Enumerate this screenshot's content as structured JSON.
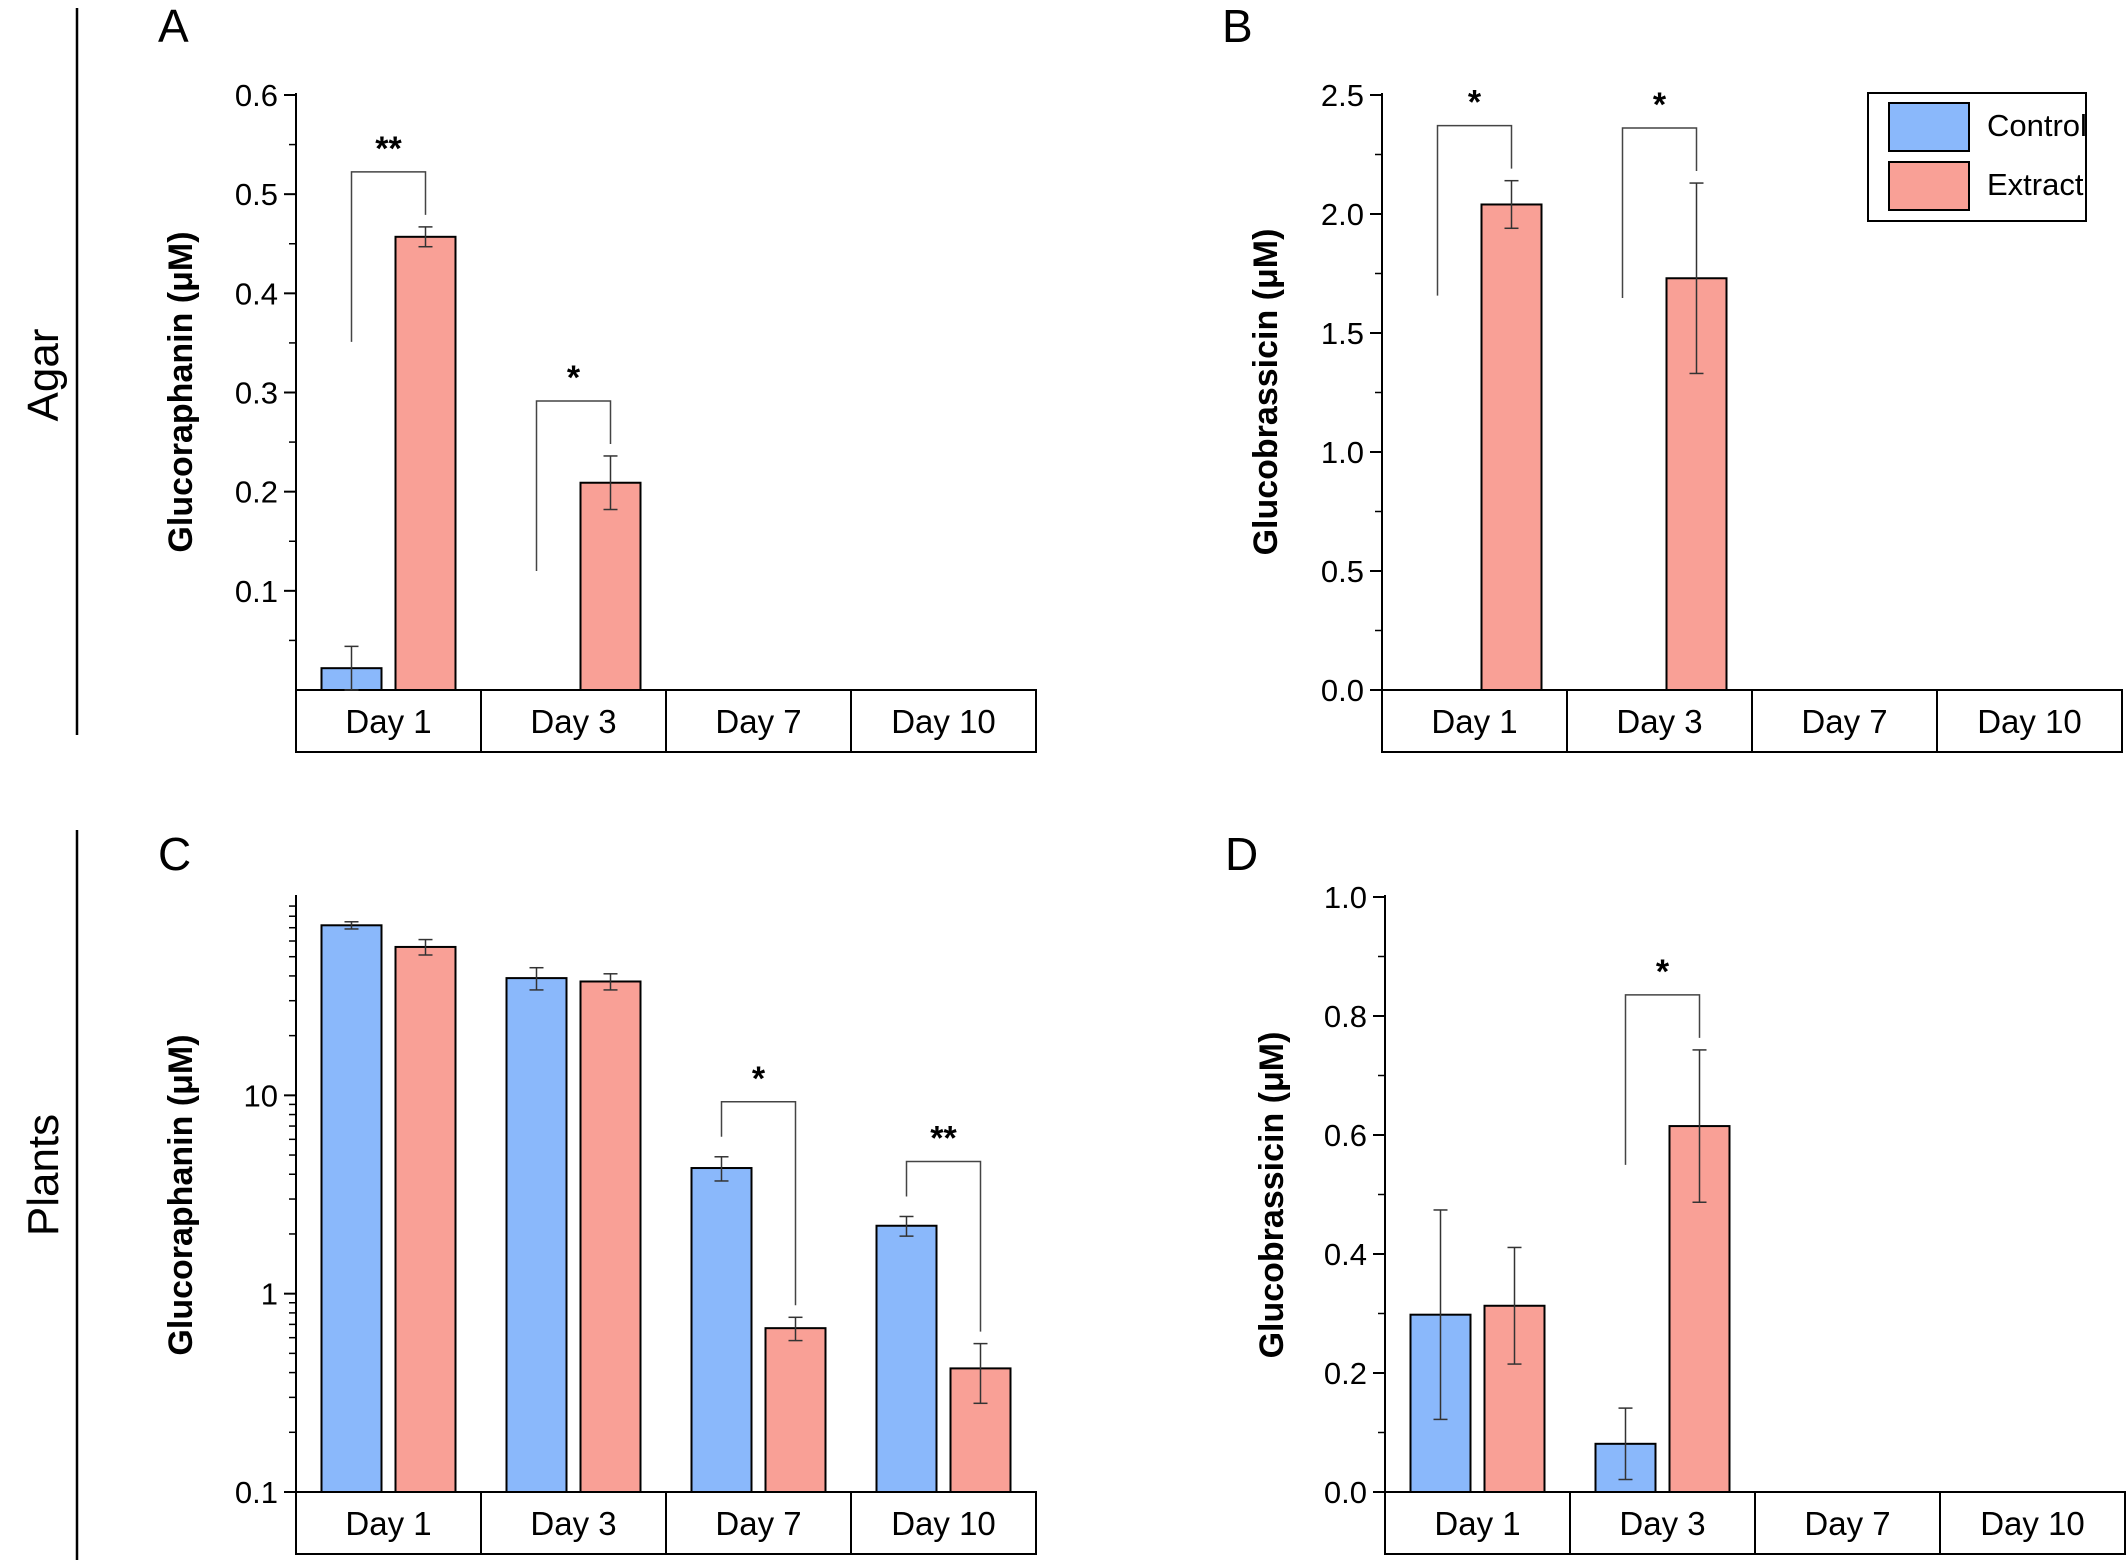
{
  "figure": {
    "row_labels": [
      "Agar",
      "Plants"
    ],
    "colors": {
      "control": "#8ab8fb",
      "extract": "#f9a096",
      "stroke": "#000000"
    },
    "legend": {
      "placement": "top-right of panel B",
      "entries": [
        "Control",
        "Extract"
      ]
    }
  },
  "chart_data": [
    {
      "panel": "A",
      "type": "bar",
      "ylabel": "Glucoraphanin (μM)",
      "yscale": "linear",
      "ylim": [
        0,
        0.6
      ],
      "yticks": [
        "0.1",
        "0.2",
        "0.3",
        "0.4",
        "0.5",
        "0.6"
      ],
      "categories": [
        "Day 1",
        "Day 3",
        "Day 7",
        "Day 10"
      ],
      "series": [
        {
          "name": "Control",
          "values": [
            0.022,
            null,
            null,
            null
          ],
          "errors": [
            0.022,
            null,
            null,
            null
          ]
        },
        {
          "name": "Extract",
          "values": [
            0.457,
            0.209,
            null,
            null
          ],
          "errors": [
            0.01,
            0.027,
            null,
            null
          ]
        }
      ],
      "significance": [
        {
          "category": "Day 1",
          "label": "**"
        },
        {
          "category": "Day 3",
          "label": "*"
        }
      ]
    },
    {
      "panel": "B",
      "type": "bar",
      "ylabel": "Glucobrassicin (μM)",
      "yscale": "linear",
      "ylim": [
        0,
        2.5
      ],
      "yticks": [
        "0.0",
        "0.5",
        "1.0",
        "1.5",
        "2.0",
        "2.5"
      ],
      "categories": [
        "Day 1",
        "Day 3",
        "Day 7",
        "Day 10"
      ],
      "series": [
        {
          "name": "Control",
          "values": [
            null,
            null,
            null,
            null
          ],
          "errors": [
            null,
            null,
            null,
            null
          ]
        },
        {
          "name": "Extract",
          "values": [
            2.04,
            1.73,
            null,
            null
          ],
          "errors": [
            0.1,
            0.4,
            null,
            null
          ]
        }
      ],
      "significance": [
        {
          "category": "Day 1",
          "label": "*"
        },
        {
          "category": "Day 3",
          "label": "*"
        }
      ]
    },
    {
      "panel": "C",
      "type": "bar",
      "ylabel": "Glucoraphanin (μM)",
      "yscale": "log",
      "ylim": [
        0.1,
        100
      ],
      "yticks": [
        "0.1",
        "1",
        "10"
      ],
      "categories": [
        "Day 1",
        "Day 3",
        "Day 7",
        "Day 10"
      ],
      "series": [
        {
          "name": "Control",
          "values": [
            72,
            39,
            4.3,
            2.2
          ],
          "errors": [
            3,
            5,
            0.6,
            0.25
          ]
        },
        {
          "name": "Extract",
          "values": [
            56,
            37.5,
            0.67,
            0.42
          ],
          "errors": [
            5,
            3.5,
            0.09,
            0.14
          ]
        }
      ],
      "significance": [
        {
          "category": "Day 7",
          "label": "*"
        },
        {
          "category": "Day 10",
          "label": "**"
        }
      ]
    },
    {
      "panel": "D",
      "type": "bar",
      "ylabel": "Glucobrassicin (μM)",
      "yscale": "linear",
      "ylim": [
        0,
        1.0
      ],
      "yticks": [
        "0.0",
        "0.2",
        "0.4",
        "0.6",
        "0.8",
        "1.0"
      ],
      "categories": [
        "Day 1",
        "Day 3",
        "Day 7",
        "Day 10"
      ],
      "series": [
        {
          "name": "Control",
          "values": [
            0.298,
            0.081,
            null,
            null
          ],
          "errors": [
            0.176,
            0.06,
            null,
            null
          ]
        },
        {
          "name": "Extract",
          "values": [
            0.313,
            0.615,
            null,
            null
          ],
          "errors": [
            0.098,
            0.128,
            null,
            null
          ]
        }
      ],
      "significance": [
        {
          "category": "Day 3",
          "label": "*"
        }
      ]
    }
  ]
}
